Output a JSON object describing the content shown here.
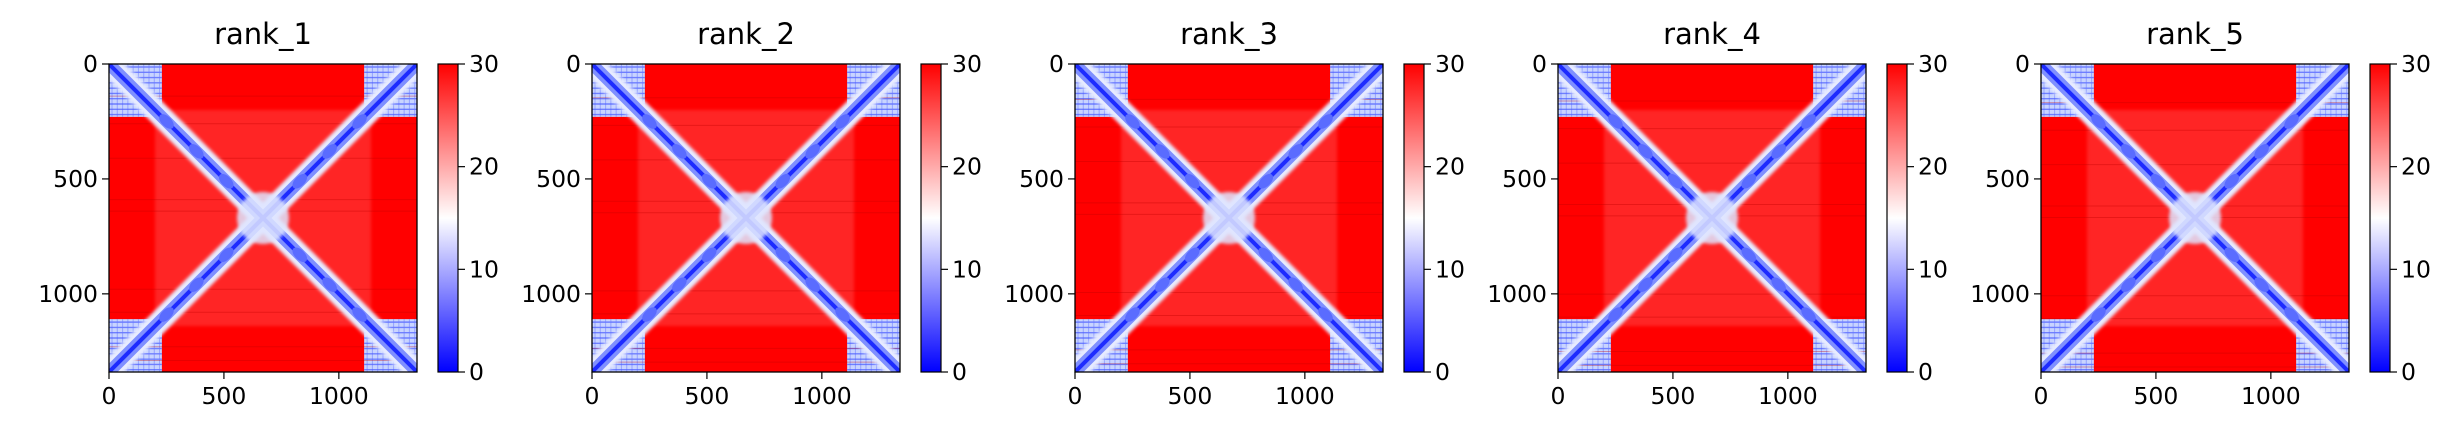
{
  "chart_data": [
    {
      "type": "heatmap",
      "title": "rank_1",
      "x_ticks": [
        "0",
        "500",
        "1000"
      ],
      "y_ticks": [
        "0",
        "500",
        "1000"
      ],
      "tick_values": [
        0,
        500,
        1000
      ],
      "matrix_size": 1340,
      "colorbar": {
        "ticks": [
          "0",
          "10",
          "20",
          "30"
        ],
        "tick_values": [
          0,
          10,
          20,
          30
        ],
        "range": [
          0,
          30
        ],
        "colormap": "bwr"
      }
    },
    {
      "type": "heatmap",
      "title": "rank_2",
      "x_ticks": [
        "0",
        "500",
        "1000"
      ],
      "y_ticks": [
        "0",
        "500",
        "1000"
      ],
      "tick_values": [
        0,
        500,
        1000
      ],
      "matrix_size": 1340,
      "colorbar": {
        "ticks": [
          "0",
          "10",
          "20",
          "30"
        ],
        "tick_values": [
          0,
          10,
          20,
          30
        ],
        "range": [
          0,
          30
        ],
        "colormap": "bwr"
      }
    },
    {
      "type": "heatmap",
      "title": "rank_3",
      "x_ticks": [
        "0",
        "500",
        "1000"
      ],
      "y_ticks": [
        "0",
        "500",
        "1000"
      ],
      "tick_values": [
        0,
        500,
        1000
      ],
      "matrix_size": 1340,
      "colorbar": {
        "ticks": [
          "0",
          "10",
          "20",
          "30"
        ],
        "tick_values": [
          0,
          10,
          20,
          30
        ],
        "range": [
          0,
          30
        ],
        "colormap": "bwr"
      }
    },
    {
      "type": "heatmap",
      "title": "rank_4",
      "x_ticks": [
        "0",
        "500",
        "1000"
      ],
      "y_ticks": [
        "0",
        "500",
        "1000"
      ],
      "tick_values": [
        0,
        500,
        1000
      ],
      "matrix_size": 1340,
      "colorbar": {
        "ticks": [
          "0",
          "10",
          "20",
          "30"
        ],
        "tick_values": [
          0,
          10,
          20,
          30
        ],
        "range": [
          0,
          30
        ],
        "colormap": "bwr"
      }
    },
    {
      "type": "heatmap",
      "title": "rank_5",
      "x_ticks": [
        "0",
        "500",
        "1000"
      ],
      "y_ticks": [
        "0",
        "500",
        "1000"
      ],
      "tick_values": [
        0,
        500,
        1000
      ],
      "matrix_size": 1340,
      "colorbar": {
        "ticks": [
          "0",
          "10",
          "20",
          "30"
        ],
        "tick_values": [
          0,
          10,
          20,
          30
        ],
        "range": [
          0,
          30
        ],
        "colormap": "bwr"
      }
    }
  ],
  "colors": {
    "low": "#0000ff",
    "mid": "#ffffff",
    "high": "#ff0000"
  }
}
